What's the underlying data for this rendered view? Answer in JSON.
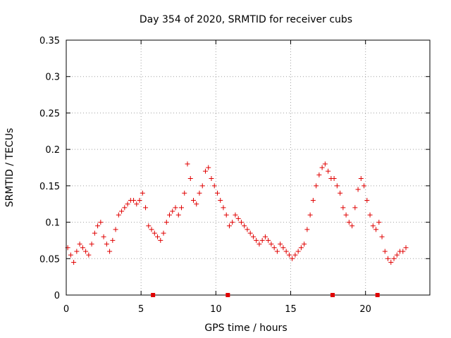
{
  "chart_data": {
    "type": "scatter",
    "title": "Day 354 of 2020, SRMTID for receiver cubs",
    "xlabel": "GPS time / hours",
    "ylabel": "SRMTID / TECUs",
    "xlim": [
      0,
      24.3
    ],
    "ylim": [
      0,
      0.35
    ],
    "xticks": [
      0,
      5,
      10,
      15,
      20
    ],
    "xtick_labels": [
      "0",
      "5",
      "10",
      "15",
      "20"
    ],
    "yticks": [
      0,
      0.05,
      0.1,
      0.15,
      0.2,
      0.25,
      0.3,
      0.35
    ],
    "ytick_labels": [
      "0",
      "0.05",
      "0.1",
      "0.15",
      "0.2",
      "0.25",
      "0.3",
      "0.35"
    ],
    "grid": true,
    "marker": "+",
    "color": "#e00000",
    "data_gaps_at_hours": [
      5.8,
      10.8,
      17.8,
      20.8
    ],
    "series": [
      {
        "name": "SRMTID",
        "x": [
          0.1,
          0.3,
          0.5,
          0.7,
          0.9,
          1.1,
          1.3,
          1.5,
          1.7,
          1.9,
          2.1,
          2.3,
          2.5,
          2.7,
          2.9,
          3.1,
          3.3,
          3.5,
          3.7,
          3.9,
          4.1,
          4.3,
          4.5,
          4.7,
          4.9,
          5.1,
          5.3,
          5.5,
          5.7,
          5.9,
          6.1,
          6.3,
          6.5,
          6.7,
          6.9,
          7.1,
          7.3,
          7.5,
          7.7,
          7.9,
          8.1,
          8.3,
          8.5,
          8.7,
          8.9,
          9.1,
          9.3,
          9.5,
          9.7,
          9.9,
          10.1,
          10.3,
          10.5,
          10.7,
          10.9,
          11.1,
          11.3,
          11.5,
          11.7,
          11.9,
          12.1,
          12.3,
          12.5,
          12.7,
          12.9,
          13.1,
          13.3,
          13.5,
          13.7,
          13.9,
          14.1,
          14.3,
          14.5,
          14.7,
          14.9,
          15.1,
          15.3,
          15.5,
          15.7,
          15.9,
          16.1,
          16.3,
          16.5,
          16.7,
          16.9,
          17.1,
          17.3,
          17.5,
          17.7,
          17.9,
          18.1,
          18.3,
          18.5,
          18.7,
          18.9,
          19.1,
          19.3,
          19.5,
          19.7,
          19.9,
          20.1,
          20.3,
          20.5,
          20.7,
          20.9,
          21.1,
          21.3,
          21.5,
          21.7,
          21.9,
          22.1,
          22.3,
          22.5,
          22.7
        ],
        "values": [
          0.065,
          0.055,
          0.045,
          0.06,
          0.07,
          0.065,
          0.06,
          0.055,
          0.07,
          0.085,
          0.095,
          0.1,
          0.08,
          0.07,
          0.06,
          0.075,
          0.09,
          0.11,
          0.115,
          0.12,
          0.125,
          0.13,
          0.13,
          0.125,
          0.13,
          0.14,
          0.12,
          0.095,
          0.09,
          0.085,
          0.08,
          0.075,
          0.085,
          0.1,
          0.11,
          0.115,
          0.12,
          0.11,
          0.12,
          0.14,
          0.18,
          0.16,
          0.13,
          0.125,
          0.14,
          0.15,
          0.17,
          0.175,
          0.16,
          0.15,
          0.14,
          0.13,
          0.12,
          0.11,
          0.095,
          0.1,
          0.11,
          0.105,
          0.1,
          0.095,
          0.09,
          0.085,
          0.08,
          0.075,
          0.07,
          0.075,
          0.08,
          0.075,
          0.07,
          0.065,
          0.06,
          0.07,
          0.065,
          0.06,
          0.055,
          0.05,
          0.055,
          0.06,
          0.065,
          0.07,
          0.09,
          0.11,
          0.13,
          0.15,
          0.165,
          0.175,
          0.18,
          0.17,
          0.16,
          0.16,
          0.15,
          0.14,
          0.12,
          0.11,
          0.1,
          0.095,
          0.12,
          0.145,
          0.16,
          0.15,
          0.13,
          0.11,
          0.095,
          0.09,
          0.1,
          0.08,
          0.06,
          0.05,
          0.045,
          0.05,
          0.055,
          0.06,
          0.06,
          0.065
        ]
      }
    ]
  }
}
